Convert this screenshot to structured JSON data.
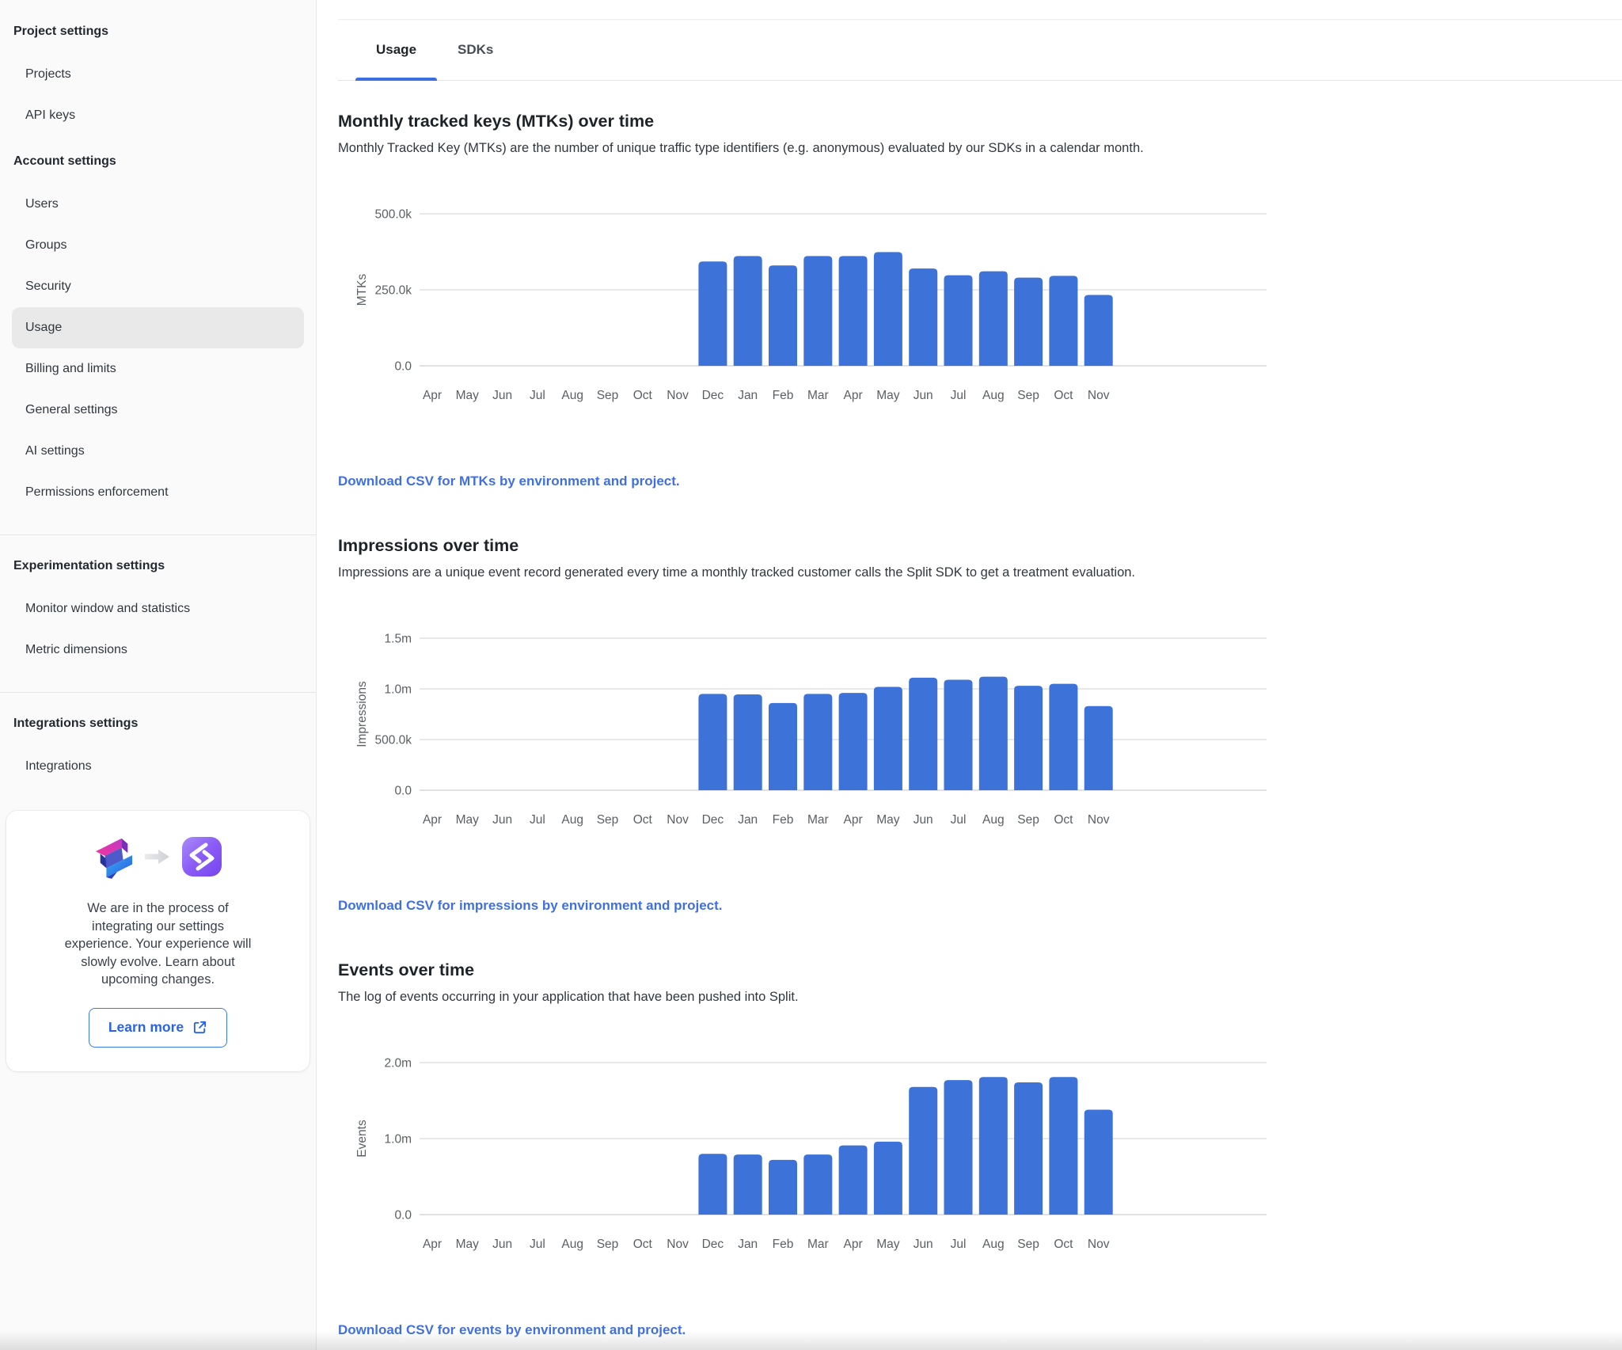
{
  "colors": {
    "bar_blue": "#3D73D8",
    "accent_blue": "#3B6FE0",
    "link_blue": "#4170DE",
    "grid_line": "#E2E2E2",
    "zero_line": "#D7D7D7",
    "tick_text": "#5B6065",
    "selected_item_bg": "#E9E9EA"
  },
  "sidebar": {
    "sections": [
      {
        "heading": "Project settings",
        "items": [
          {
            "label": "Projects"
          },
          {
            "label": "API keys"
          }
        ]
      },
      {
        "heading": "Account settings",
        "items": [
          {
            "label": "Users"
          },
          {
            "label": "Groups"
          },
          {
            "label": "Security"
          },
          {
            "label": "Usage",
            "selected": true
          },
          {
            "label": "Billing and limits"
          },
          {
            "label": "General settings"
          },
          {
            "label": "AI settings"
          },
          {
            "label": "Permissions enforcement"
          }
        ]
      },
      {
        "heading": "Experimentation settings",
        "divider_before": true,
        "items": [
          {
            "label": "Monitor window and statistics"
          },
          {
            "label": "Metric dimensions"
          }
        ]
      },
      {
        "heading": "Integrations settings",
        "divider_before": true,
        "items": [
          {
            "label": "Integrations"
          }
        ]
      }
    ],
    "card": {
      "message": "We are in the process of integrating our settings experience. Your experience will slowly evolve. Learn about upcoming changes.",
      "button_label": "Learn more",
      "old_logo": "split-legacy-logo",
      "new_logo": "split-new-logo"
    }
  },
  "tabs": [
    {
      "label": "Usage",
      "active": true
    },
    {
      "label": "SDKs",
      "active": false
    }
  ],
  "sections": [
    {
      "title": "Monthly tracked keys (MTKs) over time",
      "description": "Monthly Tracked Key (MTKs) are the number of unique traffic type identifiers (e.g. anonymous) evaluated by our SDKs in a calendar month.",
      "download_link": "Download CSV for MTKs by environment and project.",
      "chart_name": "mtks-chart"
    },
    {
      "title": "Impressions over time",
      "description": "Impressions are a unique event record generated every time a monthly tracked customer calls the Split SDK to get a treatment evaluation.",
      "download_link": "Download CSV for impressions by environment and project.",
      "chart_name": "impressions-chart"
    },
    {
      "title": "Events over time",
      "description": "The log of events occurring in your application that have been pushed into Split.",
      "download_link": "Download CSV for events by environment and project.",
      "chart_name": "events-chart"
    }
  ],
  "chart_data": [
    {
      "type": "bar",
      "title": "Monthly tracked keys (MTKs) over time",
      "xlabel": "",
      "ylabel": "MTKs",
      "categories": [
        "Apr",
        "May",
        "Jun",
        "Jul",
        "Aug",
        "Sep",
        "Oct",
        "Nov",
        "Dec",
        "Jan",
        "Feb",
        "Mar",
        "Apr",
        "May",
        "Jun",
        "Jul",
        "Aug",
        "Sep",
        "Oct",
        "Nov"
      ],
      "values": [
        null,
        null,
        null,
        null,
        null,
        null,
        null,
        null,
        343000,
        361000,
        330000,
        361000,
        361000,
        374000,
        320000,
        298000,
        311000,
        290000,
        296000,
        233000
      ],
      "yticks": [
        {
          "label": "0.0",
          "value": 0
        },
        {
          "label": "250.0k",
          "value": 250000
        },
        {
          "label": "500.0k",
          "value": 500000
        }
      ],
      "ylim": [
        0,
        500000
      ],
      "grid": true,
      "legend": "none"
    },
    {
      "type": "bar",
      "title": "Impressions over time",
      "xlabel": "",
      "ylabel": "Impressions",
      "categories": [
        "Apr",
        "May",
        "Jun",
        "Jul",
        "Aug",
        "Sep",
        "Oct",
        "Nov",
        "Dec",
        "Jan",
        "Feb",
        "Mar",
        "Apr",
        "May",
        "Jun",
        "Jul",
        "Aug",
        "Sep",
        "Oct",
        "Nov"
      ],
      "values": [
        null,
        null,
        null,
        null,
        null,
        null,
        null,
        null,
        950000,
        945000,
        860000,
        950000,
        960000,
        1020000,
        1110000,
        1090000,
        1120000,
        1030000,
        1050000,
        830000
      ],
      "yticks": [
        {
          "label": "0.0",
          "value": 0
        },
        {
          "label": "500.0k",
          "value": 500000
        },
        {
          "label": "1.0m",
          "value": 1000000
        },
        {
          "label": "1.5m",
          "value": 1500000
        }
      ],
      "ylim": [
        0,
        1500000
      ],
      "grid": true,
      "legend": "none"
    },
    {
      "type": "bar",
      "title": "Events over time",
      "xlabel": "",
      "ylabel": "Events",
      "categories": [
        "Apr",
        "May",
        "Jun",
        "Jul",
        "Aug",
        "Sep",
        "Oct",
        "Nov",
        "Dec",
        "Jan",
        "Feb",
        "Mar",
        "Apr",
        "May",
        "Jun",
        "Jul",
        "Aug",
        "Sep",
        "Oct",
        "Nov"
      ],
      "values": [
        null,
        null,
        null,
        null,
        null,
        null,
        null,
        null,
        800000,
        790000,
        720000,
        790000,
        910000,
        960000,
        1680000,
        1770000,
        1810000,
        1740000,
        1810000,
        1380000
      ],
      "yticks": [
        {
          "label": "0.0",
          "value": 0
        },
        {
          "label": "1.0m",
          "value": 1000000
        },
        {
          "label": "2.0m",
          "value": 2000000
        }
      ],
      "ylim": [
        0,
        2000000
      ],
      "grid": true,
      "legend": "none"
    }
  ]
}
